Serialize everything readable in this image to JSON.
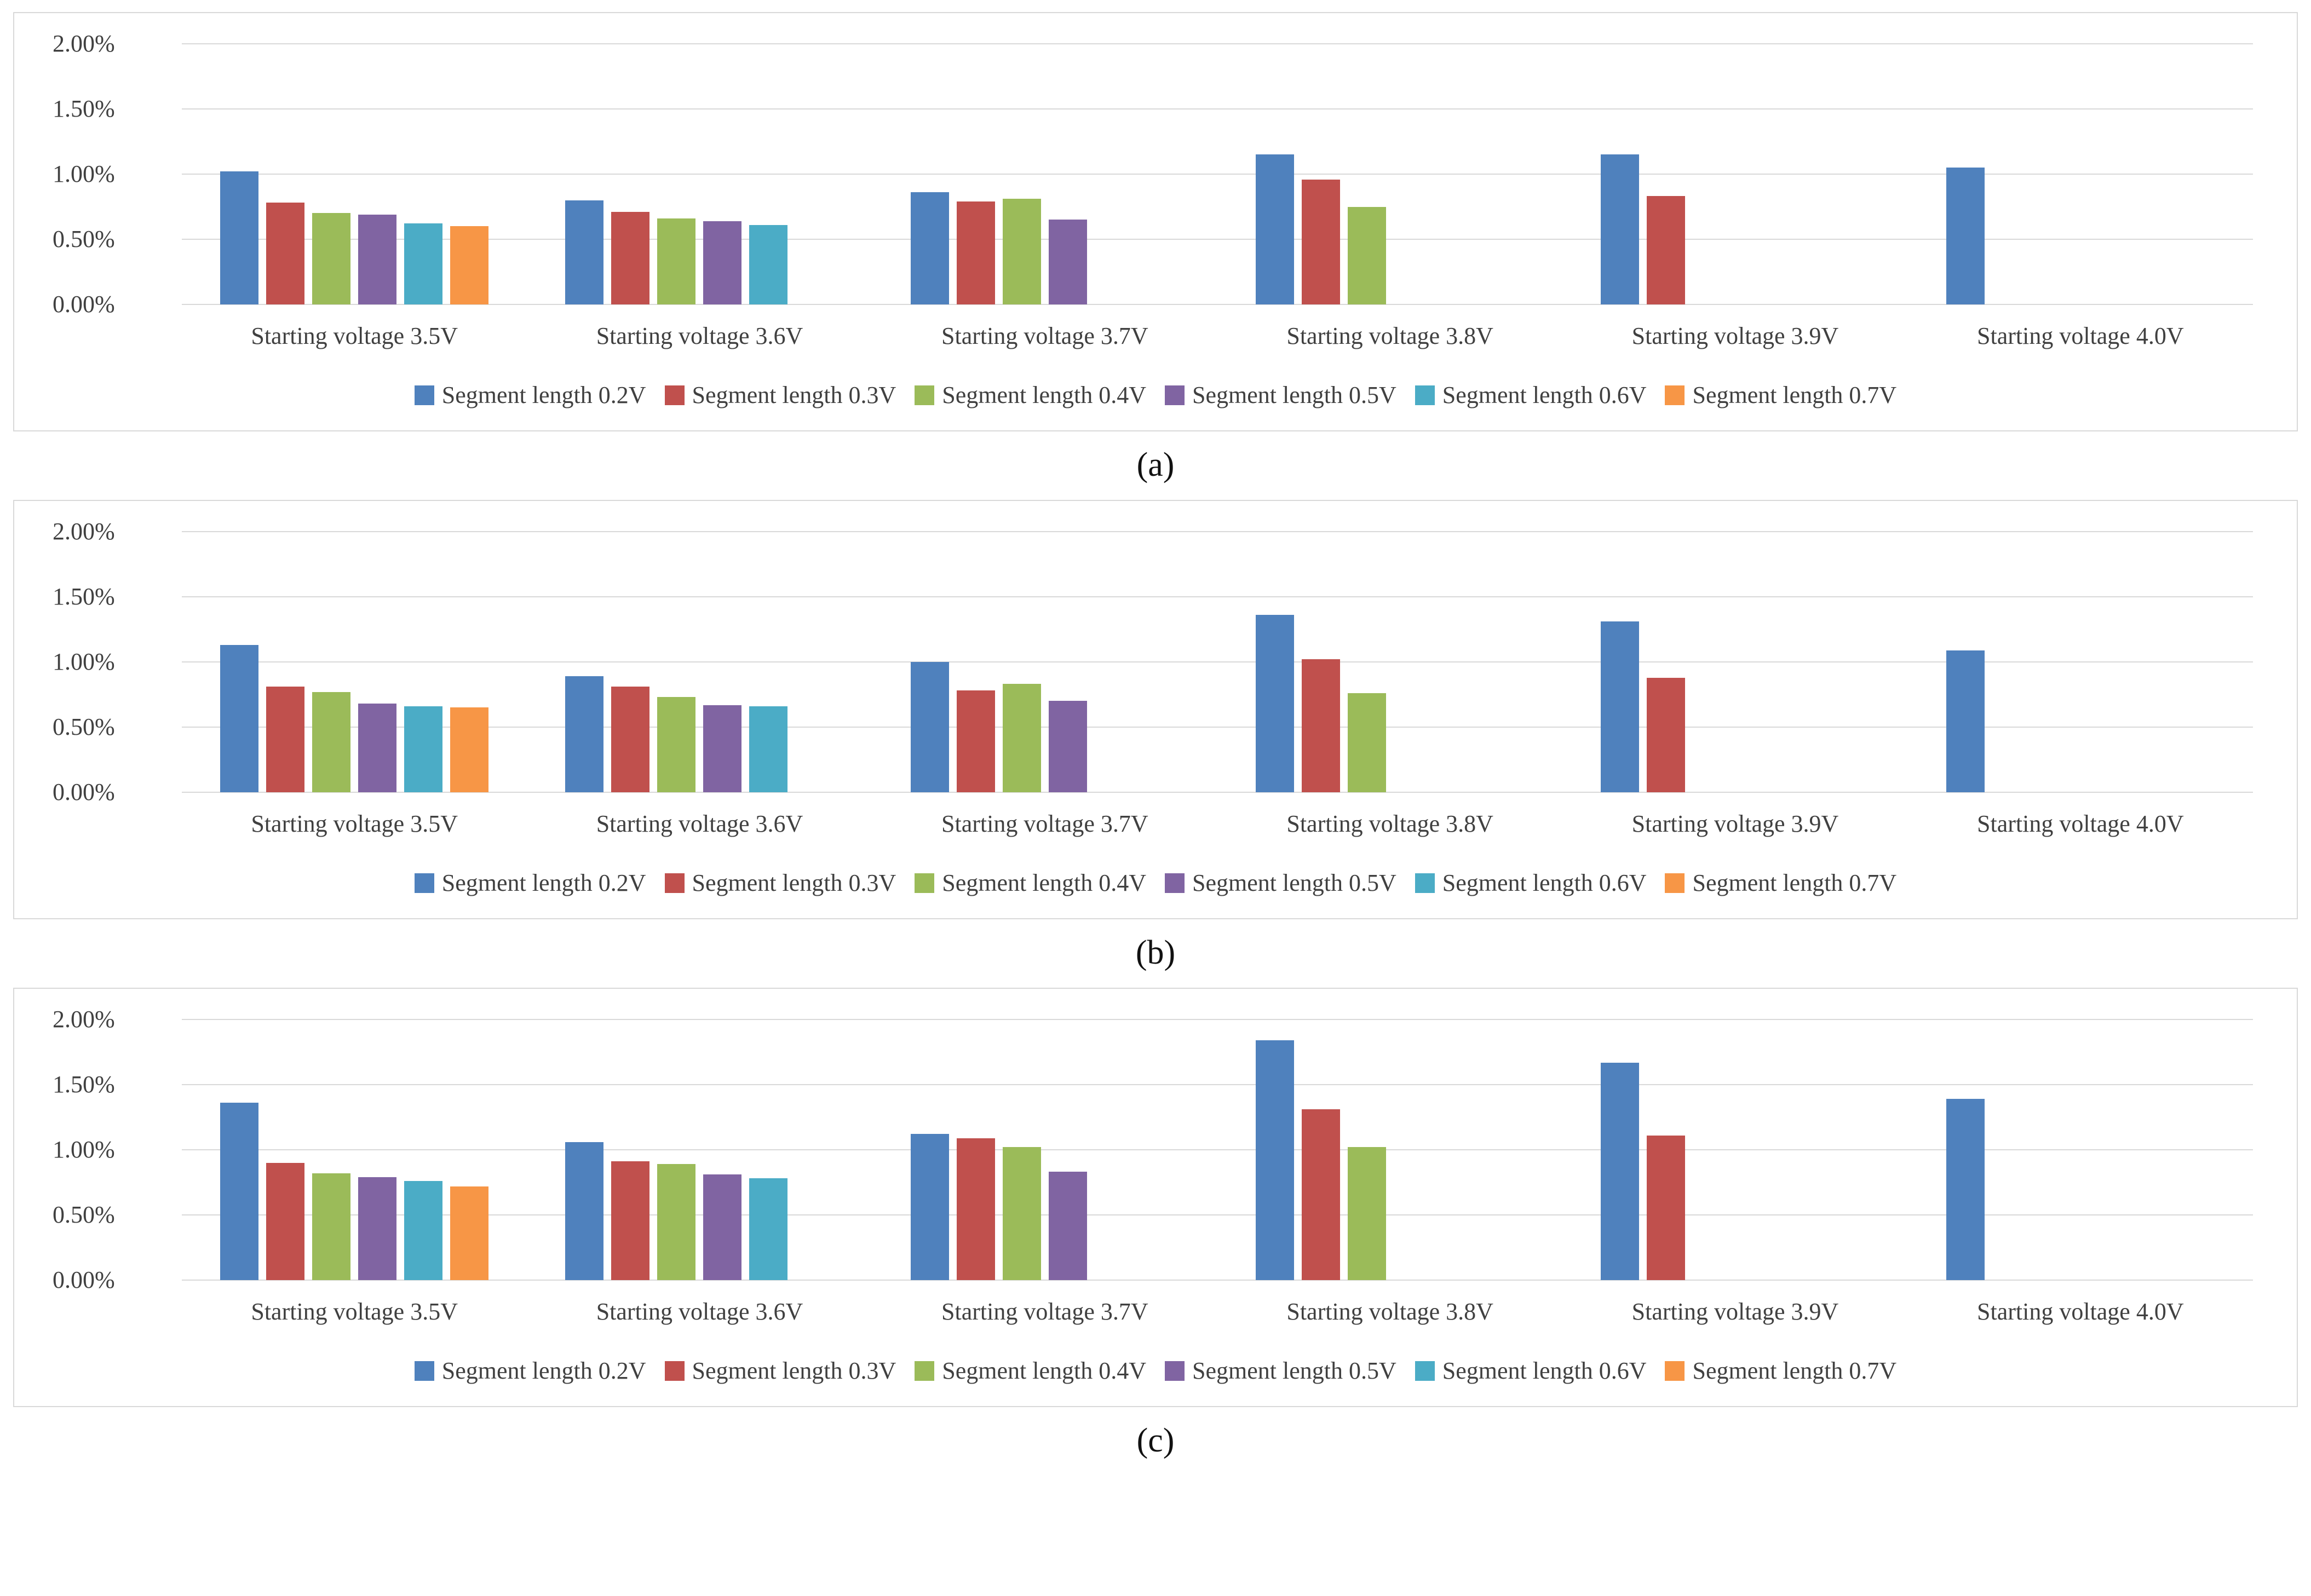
{
  "figure": {
    "background": "#ffffff",
    "panel_border_color": "#d9d9d9",
    "gridline_color": "#d9d9d9",
    "text_color": "#404040"
  },
  "captions": {
    "a": "(a)",
    "b": "(b)",
    "c": "(c)"
  },
  "chart_data": [
    {
      "type": "bar",
      "panel": "(a)",
      "ylim": [
        0,
        2.0
      ],
      "grid": true,
      "legend_position": "bottom",
      "xlabel": "",
      "ylabel": "",
      "y_ticks": [
        "2.00%",
        "1.50%",
        "1.00%",
        "0.50%",
        "0.00%"
      ],
      "categories": [
        "Starting voltage 3.5V",
        "Starting voltage 3.6V",
        "Starting voltage 3.7V",
        "Starting voltage 3.8V",
        "Starting voltage 3.9V",
        "Starting voltage 4.0V"
      ],
      "series": [
        {
          "name": "Segment length 0.2V",
          "color": "#4F81BD",
          "values": [
            1.02,
            0.8,
            0.86,
            1.15,
            1.15,
            1.05
          ]
        },
        {
          "name": "Segment length 0.3V",
          "color": "#C0504D",
          "values": [
            0.78,
            0.71,
            0.79,
            0.96,
            0.83,
            null
          ]
        },
        {
          "name": "Segment length 0.4V",
          "color": "#9BBB59",
          "values": [
            0.7,
            0.66,
            0.81,
            0.75,
            null,
            null
          ]
        },
        {
          "name": "Segment length 0.5V",
          "color": "#8064A2",
          "values": [
            0.69,
            0.64,
            0.65,
            null,
            null,
            null
          ]
        },
        {
          "name": "Segment length 0.6V",
          "color": "#4BACC6",
          "values": [
            0.62,
            0.61,
            null,
            null,
            null,
            null
          ]
        },
        {
          "name": "Segment length 0.7V",
          "color": "#F79646",
          "values": [
            0.6,
            null,
            null,
            null,
            null,
            null
          ]
        }
      ]
    },
    {
      "type": "bar",
      "panel": "(b)",
      "ylim": [
        0,
        2.0
      ],
      "grid": true,
      "legend_position": "bottom",
      "xlabel": "",
      "ylabel": "",
      "y_ticks": [
        "2.00%",
        "1.50%",
        "1.00%",
        "0.50%",
        "0.00%"
      ],
      "categories": [
        "Starting voltage 3.5V",
        "Starting voltage 3.6V",
        "Starting voltage 3.7V",
        "Starting voltage 3.8V",
        "Starting voltage 3.9V",
        "Starting voltage 4.0V"
      ],
      "series": [
        {
          "name": "Segment length 0.2V",
          "color": "#4F81BD",
          "values": [
            1.13,
            0.89,
            1.0,
            1.36,
            1.31,
            1.09
          ]
        },
        {
          "name": "Segment length 0.3V",
          "color": "#C0504D",
          "values": [
            0.81,
            0.81,
            0.78,
            1.02,
            0.88,
            null
          ]
        },
        {
          "name": "Segment length 0.4V",
          "color": "#9BBB59",
          "values": [
            0.77,
            0.73,
            0.83,
            0.76,
            null,
            null
          ]
        },
        {
          "name": "Segment length 0.5V",
          "color": "#8064A2",
          "values": [
            0.68,
            0.67,
            0.7,
            null,
            null,
            null
          ]
        },
        {
          "name": "Segment length 0.6V",
          "color": "#4BACC6",
          "values": [
            0.66,
            0.66,
            null,
            null,
            null,
            null
          ]
        },
        {
          "name": "Segment length 0.7V",
          "color": "#F79646",
          "values": [
            0.65,
            null,
            null,
            null,
            null,
            null
          ]
        }
      ]
    },
    {
      "type": "bar",
      "panel": "(c)",
      "ylim": [
        0,
        2.0
      ],
      "grid": true,
      "legend_position": "bottom",
      "xlabel": "",
      "ylabel": "",
      "y_ticks": [
        "2.00%",
        "1.50%",
        "1.00%",
        "0.50%",
        "0.00%"
      ],
      "categories": [
        "Starting voltage 3.5V",
        "Starting voltage 3.6V",
        "Starting voltage 3.7V",
        "Starting voltage 3.8V",
        "Starting voltage 3.9V",
        "Starting voltage 4.0V"
      ],
      "series": [
        {
          "name": "Segment length 0.2V",
          "color": "#4F81BD",
          "values": [
            1.36,
            1.06,
            1.12,
            1.84,
            1.67,
            1.39
          ]
        },
        {
          "name": "Segment length 0.3V",
          "color": "#C0504D",
          "values": [
            0.9,
            0.91,
            1.09,
            1.31,
            1.11,
            null
          ]
        },
        {
          "name": "Segment length 0.4V",
          "color": "#9BBB59",
          "values": [
            0.82,
            0.89,
            1.02,
            1.02,
            null,
            null
          ]
        },
        {
          "name": "Segment length 0.5V",
          "color": "#8064A2",
          "values": [
            0.79,
            0.81,
            0.83,
            null,
            null,
            null
          ]
        },
        {
          "name": "Segment length 0.6V",
          "color": "#4BACC6",
          "values": [
            0.76,
            0.78,
            null,
            null,
            null,
            null
          ]
        },
        {
          "name": "Segment length 0.7V",
          "color": "#F79646",
          "values": [
            0.72,
            null,
            null,
            null,
            null,
            null
          ]
        }
      ]
    }
  ]
}
